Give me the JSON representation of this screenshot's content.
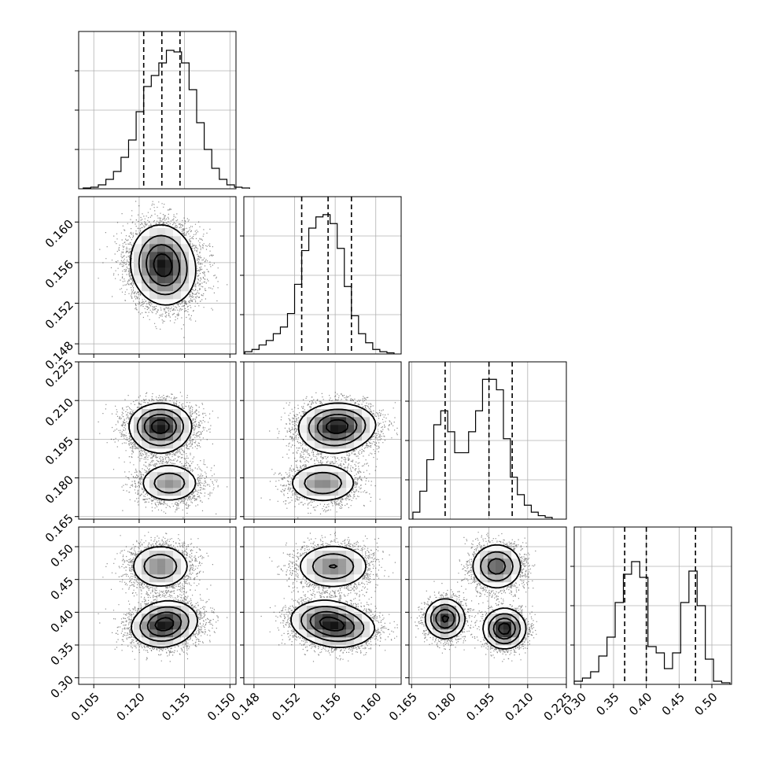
{
  "chart_data": {
    "type": "corner",
    "grid": true,
    "parameters": [
      {
        "range": [
          0.1,
          0.152
        ],
        "ticks": [
          0.105,
          0.12,
          0.135,
          0.15
        ],
        "tick_labels": [
          "0.105",
          "0.120",
          "0.135",
          "0.150"
        ],
        "quantiles": [
          0.1215,
          0.1275,
          0.1335
        ],
        "hist": {
          "bin_width": 0.0025,
          "start": 0.1015,
          "counts": [
            0.5,
            1,
            2.5,
            6,
            11,
            20,
            31,
            49,
            65,
            72,
            80,
            88,
            87,
            80,
            63,
            42,
            25,
            13,
            6,
            2.5,
            1,
            0.5
          ],
          "ymax": 100
        }
      },
      {
        "range": [
          0.147,
          0.1625
        ],
        "ticks": [
          0.148,
          0.152,
          0.156,
          0.16
        ],
        "tick_labels": [
          "0.148",
          "0.152",
          "0.156",
          "0.160"
        ],
        "quantiles": [
          0.1527,
          0.1553,
          0.1576
        ],
        "hist": {
          "bin_width": 0.0007,
          "start": 0.1471,
          "counts": [
            1,
            2,
            4,
            6,
            9,
            12,
            18,
            31,
            46,
            56,
            61,
            62,
            58,
            47,
            30,
            17,
            9,
            5,
            2,
            1,
            0.5
          ],
          "ymax": 70
        }
      },
      {
        "range": [
          0.164,
          0.225
        ],
        "ticks": [
          0.165,
          0.18,
          0.195,
          0.21,
          0.225
        ],
        "tick_labels": [
          "0.165",
          "0.180",
          "0.195",
          "0.210",
          "0.225"
        ],
        "quantiles": [
          0.178,
          0.195,
          0.204
        ],
        "hist": {
          "bin_width": 0.0027,
          "start": 0.1655,
          "counts": [
            2,
            8,
            17,
            27,
            31,
            25,
            19,
            19,
            25,
            31,
            40,
            40,
            37,
            23,
            12,
            7,
            4,
            2,
            1,
            0.5
          ],
          "ymax": 45
        }
      },
      {
        "range": [
          0.29,
          0.53
        ],
        "ticks": [
          0.3,
          0.35,
          0.4,
          0.45,
          0.5
        ],
        "tick_labels": [
          "0.30",
          "0.35",
          "0.40",
          "0.45",
          "0.50"
        ],
        "quantiles": [
          0.367,
          0.4,
          0.475
        ],
        "hist": {
          "bin_width": 0.0125,
          "start": 0.29,
          "counts": [
            1,
            2,
            4,
            9,
            15,
            26,
            35,
            39,
            34,
            12,
            10,
            5,
            10,
            26,
            36,
            25,
            8,
            1,
            0.5
          ],
          "ymax": 50
        }
      }
    ],
    "components": [
      {
        "mean": [
          0.127,
          0.1558,
          0.198,
          0.47
        ],
        "sd": [
          0.005,
          0.0018,
          0.0048,
          0.017
        ],
        "weight": 0.35
      },
      {
        "mean": [
          0.13,
          0.1548,
          0.178,
          0.39
        ],
        "sd": [
          0.005,
          0.0017,
          0.0038,
          0.015
        ],
        "weight": 0.3
      },
      {
        "mean": [
          0.127,
          0.1565,
          0.201,
          0.375
        ],
        "sd": [
          0.005,
          0.0018,
          0.004,
          0.015
        ],
        "weight": 0.35
      }
    ],
    "contour_levels": 4
  }
}
